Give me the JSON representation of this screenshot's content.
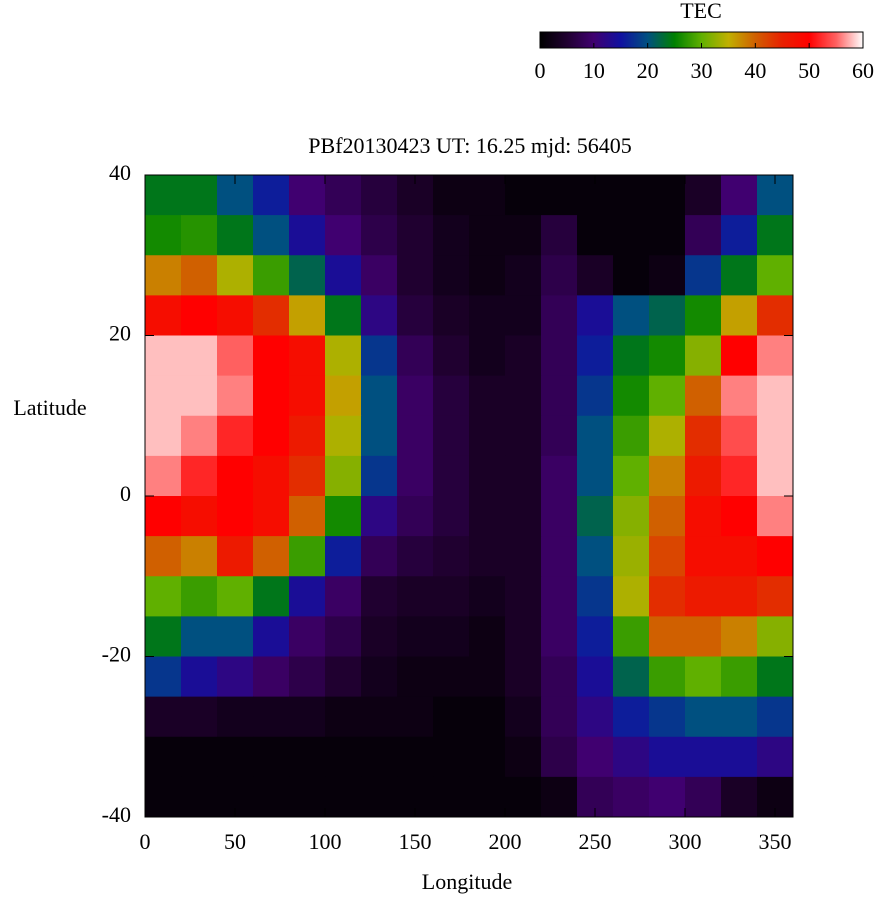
{
  "chart_data": {
    "type": "heatmap",
    "title": "PBf20130423  UT: 16.25  mjd: 56405",
    "x_label": "Longitude",
    "y_label": "Latitude",
    "x": [
      10,
      30,
      50,
      70,
      90,
      110,
      130,
      150,
      170,
      190,
      210,
      230,
      250,
      270,
      290,
      310,
      330,
      350
    ],
    "y": [
      37.5,
      32.5,
      27.5,
      22.5,
      17.5,
      12.5,
      7.5,
      2.5,
      -2.5,
      -7.5,
      -12.5,
      -17.5,
      -22.5,
      -27.5,
      -32.5,
      -37.5
    ],
    "z": [
      [
        24,
        24,
        20,
        16,
        10,
        8,
        6,
        4,
        2,
        2,
        1,
        1,
        1,
        1,
        1,
        4,
        10,
        20
      ],
      [
        26,
        27,
        24,
        20,
        14,
        10,
        7,
        5,
        3,
        2,
        2,
        6,
        1,
        1,
        1,
        8,
        16,
        24
      ],
      [
        38,
        40,
        34,
        28,
        22,
        14,
        9,
        5,
        3,
        2,
        3,
        7,
        4,
        1,
        2,
        18,
        24,
        30
      ],
      [
        48,
        50,
        48,
        44,
        36,
        24,
        12,
        6,
        4,
        3,
        3,
        8,
        14,
        20,
        22,
        26,
        36,
        44
      ],
      [
        58,
        58,
        55,
        50,
        48,
        34,
        18,
        8,
        5,
        3,
        4,
        8,
        16,
        24,
        26,
        32,
        50,
        56
      ],
      [
        58,
        58,
        56,
        50,
        48,
        36,
        20,
        9,
        6,
        4,
        4,
        8,
        18,
        26,
        30,
        40,
        56,
        58
      ],
      [
        58,
        56,
        52,
        50,
        46,
        34,
        20,
        9,
        6,
        4,
        4,
        8,
        20,
        28,
        34,
        44,
        54,
        58
      ],
      [
        56,
        52,
        50,
        48,
        44,
        32,
        18,
        9,
        6,
        4,
        4,
        9,
        20,
        30,
        38,
        46,
        52,
        58
      ],
      [
        50,
        48,
        50,
        48,
        40,
        26,
        12,
        8,
        6,
        4,
        4,
        9,
        22,
        32,
        40,
        48,
        50,
        56
      ],
      [
        40,
        38,
        46,
        40,
        28,
        16,
        8,
        6,
        5,
        4,
        4,
        9,
        20,
        33,
        42,
        48,
        48,
        50
      ],
      [
        30,
        28,
        30,
        24,
        14,
        9,
        5,
        4,
        4,
        3,
        4,
        9,
        18,
        34,
        44,
        46,
        46,
        44
      ],
      [
        24,
        20,
        20,
        14,
        9,
        7,
        4,
        3,
        3,
        2,
        4,
        9,
        16,
        28,
        40,
        40,
        38,
        32
      ],
      [
        18,
        14,
        12,
        9,
        7,
        5,
        3,
        2,
        2,
        2,
        4,
        8,
        14,
        22,
        28,
        30,
        28,
        24
      ],
      [
        4,
        4,
        3,
        3,
        3,
        2,
        2,
        2,
        1,
        1,
        3,
        8,
        12,
        16,
        18,
        20,
        20,
        18
      ],
      [
        1,
        1,
        1,
        1,
        1,
        1,
        1,
        1,
        1,
        1,
        2,
        7,
        10,
        12,
        14,
        14,
        14,
        12
      ],
      [
        1,
        1,
        1,
        1,
        1,
        1,
        1,
        1,
        1,
        1,
        1,
        2,
        8,
        9,
        10,
        8,
        4,
        2
      ]
    ],
    "xlim": [
      0,
      360
    ],
    "ylim": [
      -40,
      40
    ],
    "xticks": [
      0,
      50,
      100,
      150,
      200,
      250,
      300,
      350
    ],
    "yticks": [
      -40,
      -20,
      0,
      20,
      40
    ],
    "colorbar": {
      "label": "TEC",
      "lim": [
        0,
        60
      ],
      "ticks": [
        0,
        10,
        20,
        30,
        40,
        50,
        60
      ]
    },
    "colormap": [
      "#000000",
      "#200030",
      "#400070",
      "#1010a0",
      "#005080",
      "#008000",
      "#60b000",
      "#c0b000",
      "#d06000",
      "#e82000",
      "#ff0000",
      "#ff6060",
      "#ffffff"
    ]
  }
}
